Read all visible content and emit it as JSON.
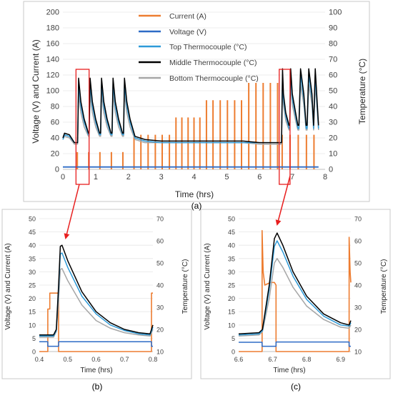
{
  "captions": {
    "a": "(a)",
    "b": "(b)",
    "c": "(c)"
  },
  "colors": {
    "current": "#ED7D31",
    "voltage": "#2E6BC6",
    "top": "#2E9AD8",
    "middle": "#000000",
    "bottom": "#A6A6A6",
    "highlight": "#E81E1E"
  },
  "chart_data": [
    {
      "type": "line",
      "panel": "a",
      "xlabel": "Time (hrs)",
      "ylabel": "Voltage (V) and Current (A)",
      "y2label": "Temperature (°C)",
      "xlim": [
        0,
        8
      ],
      "ylim": [
        0,
        200
      ],
      "y2lim": [
        0,
        100
      ],
      "xticks": [
        "0",
        "1",
        "2",
        "3",
        "4",
        "5",
        "6",
        "7",
        "8"
      ],
      "yticks": [
        "0",
        "20",
        "40",
        "60",
        "80",
        "100",
        "120",
        "140",
        "160",
        "180",
        "200"
      ],
      "y2ticks": [
        "0",
        "10",
        "20",
        "30",
        "40",
        "50",
        "60",
        "70",
        "80",
        "90",
        "100"
      ],
      "grid": true,
      "legend_position": "top-center",
      "legend": [
        "Current (A)",
        "Voltage (V)",
        "Top Thermocouple (°C)",
        "Middle Thermocouple (°C)",
        "Bottom Thermocouple (°C)"
      ],
      "highlights": [
        [
          0.4,
          0.8
        ],
        [
          6.6,
          6.93
        ]
      ],
      "current_pulses": [
        {
          "t": 0.44,
          "v": 22
        },
        {
          "t": 0.79,
          "v": 22
        },
        {
          "t": 1.13,
          "v": 22
        },
        {
          "t": 1.48,
          "v": 22
        },
        {
          "t": 1.83,
          "v": 22
        },
        {
          "t": 2.17,
          "v": 44
        },
        {
          "t": 2.38,
          "v": 44
        },
        {
          "t": 2.6,
          "v": 44
        },
        {
          "t": 2.82,
          "v": 44
        },
        {
          "t": 3.03,
          "v": 44
        },
        {
          "t": 3.25,
          "v": 44
        },
        {
          "t": 3.45,
          "v": 66
        },
        {
          "t": 3.63,
          "v": 66
        },
        {
          "t": 3.82,
          "v": 66
        },
        {
          "t": 4.0,
          "v": 66
        },
        {
          "t": 4.18,
          "v": 66
        },
        {
          "t": 4.38,
          "v": 88
        },
        {
          "t": 4.58,
          "v": 88
        },
        {
          "t": 4.8,
          "v": 88
        },
        {
          "t": 5.02,
          "v": 88
        },
        {
          "t": 5.24,
          "v": 88
        },
        {
          "t": 5.45,
          "v": 88
        },
        {
          "t": 5.67,
          "v": 110
        },
        {
          "t": 5.89,
          "v": 110
        },
        {
          "t": 6.11,
          "v": 110
        },
        {
          "t": 6.33,
          "v": 110
        },
        {
          "t": 6.55,
          "v": 110
        },
        {
          "t": 6.69,
          "v": 44
        },
        {
          "t": 6.93,
          "v": 44
        },
        {
          "t": 7.18,
          "v": 44
        },
        {
          "t": 7.43,
          "v": 44
        },
        {
          "t": 7.66,
          "v": 44
        }
      ],
      "temperature_series": [
        {
          "name": "Middle Thermocouple (°C)",
          "x": [
            0,
            0.05,
            0.2,
            0.35,
            0.45,
            0.48,
            0.55,
            0.65,
            0.78,
            0.8,
            0.83,
            0.9,
            1.0,
            1.12,
            1.15,
            1.18,
            1.25,
            1.35,
            1.47,
            1.5,
            1.53,
            1.6,
            1.7,
            1.82,
            1.85,
            1.88,
            1.95,
            2.05,
            2.2,
            2.5,
            3.0,
            3.5,
            4.0,
            4.5,
            5.0,
            5.5,
            6.0,
            6.5,
            6.67,
            6.7,
            6.73,
            6.8,
            6.9,
            6.92,
            6.95,
            7.0,
            7.1,
            7.17,
            7.2,
            7.25,
            7.35,
            7.42,
            7.45,
            7.5,
            7.6,
            7.65,
            7.7,
            7.8
          ],
          "y": [
            20,
            23,
            22,
            17,
            17,
            58,
            43,
            32,
            23,
            23,
            58,
            43,
            32,
            23,
            23,
            58,
            43,
            32,
            23,
            23,
            58,
            43,
            32,
            23,
            23,
            58,
            43,
            32,
            21,
            19,
            18,
            18,
            18,
            18,
            18,
            18,
            17,
            17,
            17,
            64,
            48,
            36,
            28,
            28,
            64,
            48,
            36,
            28,
            28,
            64,
            48,
            28,
            28,
            64,
            48,
            28,
            64,
            28
          ]
        },
        {
          "name": "Top Thermocouple (°C)",
          "x": [
            0,
            0.05,
            0.2,
            0.35,
            0.45,
            0.48,
            0.55,
            0.65,
            0.78,
            0.8,
            0.83,
            0.9,
            1.0,
            1.12,
            1.15,
            1.18,
            1.25,
            1.35,
            1.47,
            1.5,
            1.53,
            1.6,
            1.7,
            1.82,
            1.85,
            1.88,
            1.95,
            2.05,
            2.2,
            2.5,
            3.0,
            3.5,
            4.0,
            4.5,
            5.0,
            5.5,
            6.0,
            6.5,
            6.67,
            6.7,
            6.73,
            6.8,
            6.9,
            6.92,
            6.95,
            7.0,
            7.1,
            7.17,
            7.2,
            7.25,
            7.35,
            7.42,
            7.45,
            7.5,
            7.6,
            7.65,
            7.7,
            7.8
          ],
          "y": [
            19,
            22,
            21,
            17,
            17,
            54,
            40,
            30,
            22,
            22,
            54,
            40,
            30,
            22,
            22,
            54,
            40,
            30,
            22,
            22,
            54,
            40,
            30,
            22,
            22,
            54,
            40,
            30,
            20,
            18,
            17,
            17,
            17,
            17,
            17,
            17,
            17,
            17,
            17,
            60,
            45,
            34,
            26,
            26,
            60,
            45,
            34,
            26,
            26,
            60,
            45,
            26,
            26,
            60,
            45,
            26,
            60,
            26
          ]
        },
        {
          "name": "Bottom Thermocouple (°C)",
          "x": [
            0,
            0.05,
            0.2,
            0.35,
            0.45,
            0.48,
            0.55,
            0.65,
            0.78,
            0.8,
            0.83,
            0.9,
            1.0,
            1.12,
            1.15,
            1.18,
            1.25,
            1.35,
            1.47,
            1.5,
            1.53,
            1.6,
            1.7,
            1.82,
            1.85,
            1.88,
            1.95,
            2.05,
            2.2,
            2.5,
            3.0,
            3.5,
            4.0,
            4.5,
            5.0,
            5.5,
            6.0,
            6.5,
            6.67,
            6.7,
            6.73,
            6.8,
            6.9,
            6.92,
            6.95,
            7.0,
            7.1,
            7.17,
            7.2,
            7.25,
            7.35,
            7.42,
            7.45,
            7.5,
            7.6,
            7.65,
            7.7,
            7.8
          ],
          "y": [
            19,
            21,
            20,
            16,
            16,
            48,
            36,
            27,
            21,
            21,
            48,
            36,
            27,
            21,
            21,
            48,
            36,
            27,
            21,
            21,
            48,
            36,
            27,
            21,
            21,
            48,
            36,
            27,
            19,
            17,
            17,
            17,
            17,
            17,
            17,
            17,
            16,
            16,
            16,
            54,
            41,
            31,
            25,
            25,
            54,
            41,
            31,
            25,
            25,
            54,
            41,
            25,
            25,
            54,
            41,
            25,
            54,
            25
          ]
        },
        {
          "name": "Voltage (V)",
          "axis": "left",
          "x": [
            0,
            7.8
          ],
          "y": [
            3,
            3
          ]
        }
      ]
    },
    {
      "type": "line",
      "panel": "b",
      "xlabel": "Time (hrs)",
      "ylabel": "Voltage (V) and Current (A)",
      "y2label": "Temperature (°C)",
      "xlim": [
        0.4,
        0.8
      ],
      "ylim": [
        0,
        50
      ],
      "y2lim": [
        10,
        70
      ],
      "xticks": [
        "0.4",
        "0.5",
        "0.6",
        "0.7",
        "0.8"
      ],
      "yticks": [
        "0",
        "5",
        "10",
        "15",
        "20",
        "25",
        "30",
        "35",
        "40",
        "45",
        "50"
      ],
      "y2ticks": [
        "10",
        "20",
        "30",
        "40",
        "50",
        "60",
        "70"
      ],
      "grid": true,
      "series": [
        {
          "name": "Current (A)",
          "axis": "left",
          "x": [
            0.4,
            0.43,
            0.43,
            0.437,
            0.437,
            0.468,
            0.468,
            0.795,
            0.795,
            0.8
          ],
          "y": [
            0,
            0,
            16,
            16,
            22,
            22,
            0,
            0,
            22,
            22
          ]
        },
        {
          "name": "Voltage (V)",
          "axis": "left",
          "x": [
            0.4,
            0.43,
            0.43,
            0.468,
            0.468,
            0.795,
            0.795,
            0.8
          ],
          "y": [
            3.7,
            3.7,
            2,
            2,
            3.7,
            3.7,
            2,
            2
          ]
        },
        {
          "name": "Middle Thermocouple (°C)",
          "axis": "right",
          "x": [
            0.4,
            0.45,
            0.46,
            0.468,
            0.474,
            0.48,
            0.5,
            0.55,
            0.6,
            0.65,
            0.7,
            0.75,
            0.79,
            0.8
          ],
          "y": [
            17.5,
            17.5,
            20,
            40,
            57.5,
            58,
            51,
            37,
            28,
            23,
            20,
            18.5,
            18,
            22
          ]
        },
        {
          "name": "Top Thermocouple (°C)",
          "axis": "right",
          "x": [
            0.4,
            0.45,
            0.46,
            0.468,
            0.474,
            0.48,
            0.5,
            0.55,
            0.6,
            0.65,
            0.7,
            0.75,
            0.79,
            0.8
          ],
          "y": [
            17,
            17,
            19.5,
            38,
            54,
            54.5,
            48,
            35,
            27,
            22,
            19.5,
            18,
            17.5,
            21
          ]
        },
        {
          "name": "Bottom Thermocouple (°C)",
          "axis": "right",
          "x": [
            0.4,
            0.45,
            0.46,
            0.468,
            0.474,
            0.48,
            0.5,
            0.55,
            0.6,
            0.65,
            0.7,
            0.75,
            0.79,
            0.8
          ],
          "y": [
            16.5,
            16.5,
            19,
            33,
            47,
            47.5,
            42,
            31,
            24,
            20.5,
            18.5,
            17.5,
            17,
            20
          ]
        }
      ]
    },
    {
      "type": "line",
      "panel": "c",
      "xlabel": "Time (hrs)",
      "ylabel": "Voltage (V) and Current (A)",
      "y2label": "Temperature (°C)",
      "xlim": [
        6.6,
        6.93
      ],
      "ylim": [
        0,
        50
      ],
      "y2lim": [
        10,
        70
      ],
      "xticks": [
        "6.6",
        "6.7",
        "6.8",
        "6.9"
      ],
      "yticks": [
        "0",
        "5",
        "10",
        "15",
        "20",
        "25",
        "30",
        "35",
        "40",
        "45",
        "50"
      ],
      "y2ticks": [
        "10",
        "20",
        "30",
        "40",
        "50",
        "60",
        "70"
      ],
      "grid": true,
      "series": [
        {
          "name": "Current (A)",
          "axis": "left",
          "x": [
            6.6,
            6.669,
            6.669,
            6.672,
            6.677,
            6.685,
            6.695,
            6.705,
            6.71,
            6.71,
            6.925,
            6.925,
            6.928,
            6.93
          ],
          "y": [
            0,
            0,
            45.5,
            30,
            25,
            25.5,
            26,
            26,
            25,
            0,
            0,
            43,
            30,
            26
          ]
        },
        {
          "name": "Voltage (V)",
          "axis": "left",
          "x": [
            6.6,
            6.669,
            6.669,
            6.71,
            6.71,
            6.925,
            6.925,
            6.93
          ],
          "y": [
            3.5,
            3.5,
            2,
            2,
            3.6,
            3.6,
            2,
            2
          ]
        },
        {
          "name": "Middle Thermocouple (°C)",
          "axis": "right",
          "x": [
            6.6,
            6.66,
            6.67,
            6.69,
            6.705,
            6.713,
            6.73,
            6.76,
            6.8,
            6.85,
            6.9,
            6.925,
            6.93
          ],
          "y": [
            18,
            18.5,
            20,
            40,
            61,
            63.5,
            58,
            46,
            35,
            27,
            23,
            22,
            24
          ]
        },
        {
          "name": "Top Thermocouple (°C)",
          "axis": "right",
          "x": [
            6.6,
            6.66,
            6.67,
            6.69,
            6.705,
            6.713,
            6.73,
            6.76,
            6.8,
            6.85,
            6.9,
            6.925,
            6.93
          ],
          "y": [
            17.5,
            18,
            19.5,
            38,
            57.5,
            60,
            55,
            44,
            33.5,
            26,
            22,
            21.5,
            23
          ]
        },
        {
          "name": "Bottom Thermocouple (°C)",
          "axis": "right",
          "x": [
            6.6,
            6.66,
            6.67,
            6.69,
            6.705,
            6.713,
            6.73,
            6.76,
            6.8,
            6.85,
            6.9,
            6.925,
            6.93
          ],
          "y": [
            17,
            17.5,
            19,
            34,
            50,
            52,
            48,
            39,
            30.5,
            24.5,
            21,
            20.5,
            22
          ]
        }
      ]
    }
  ]
}
